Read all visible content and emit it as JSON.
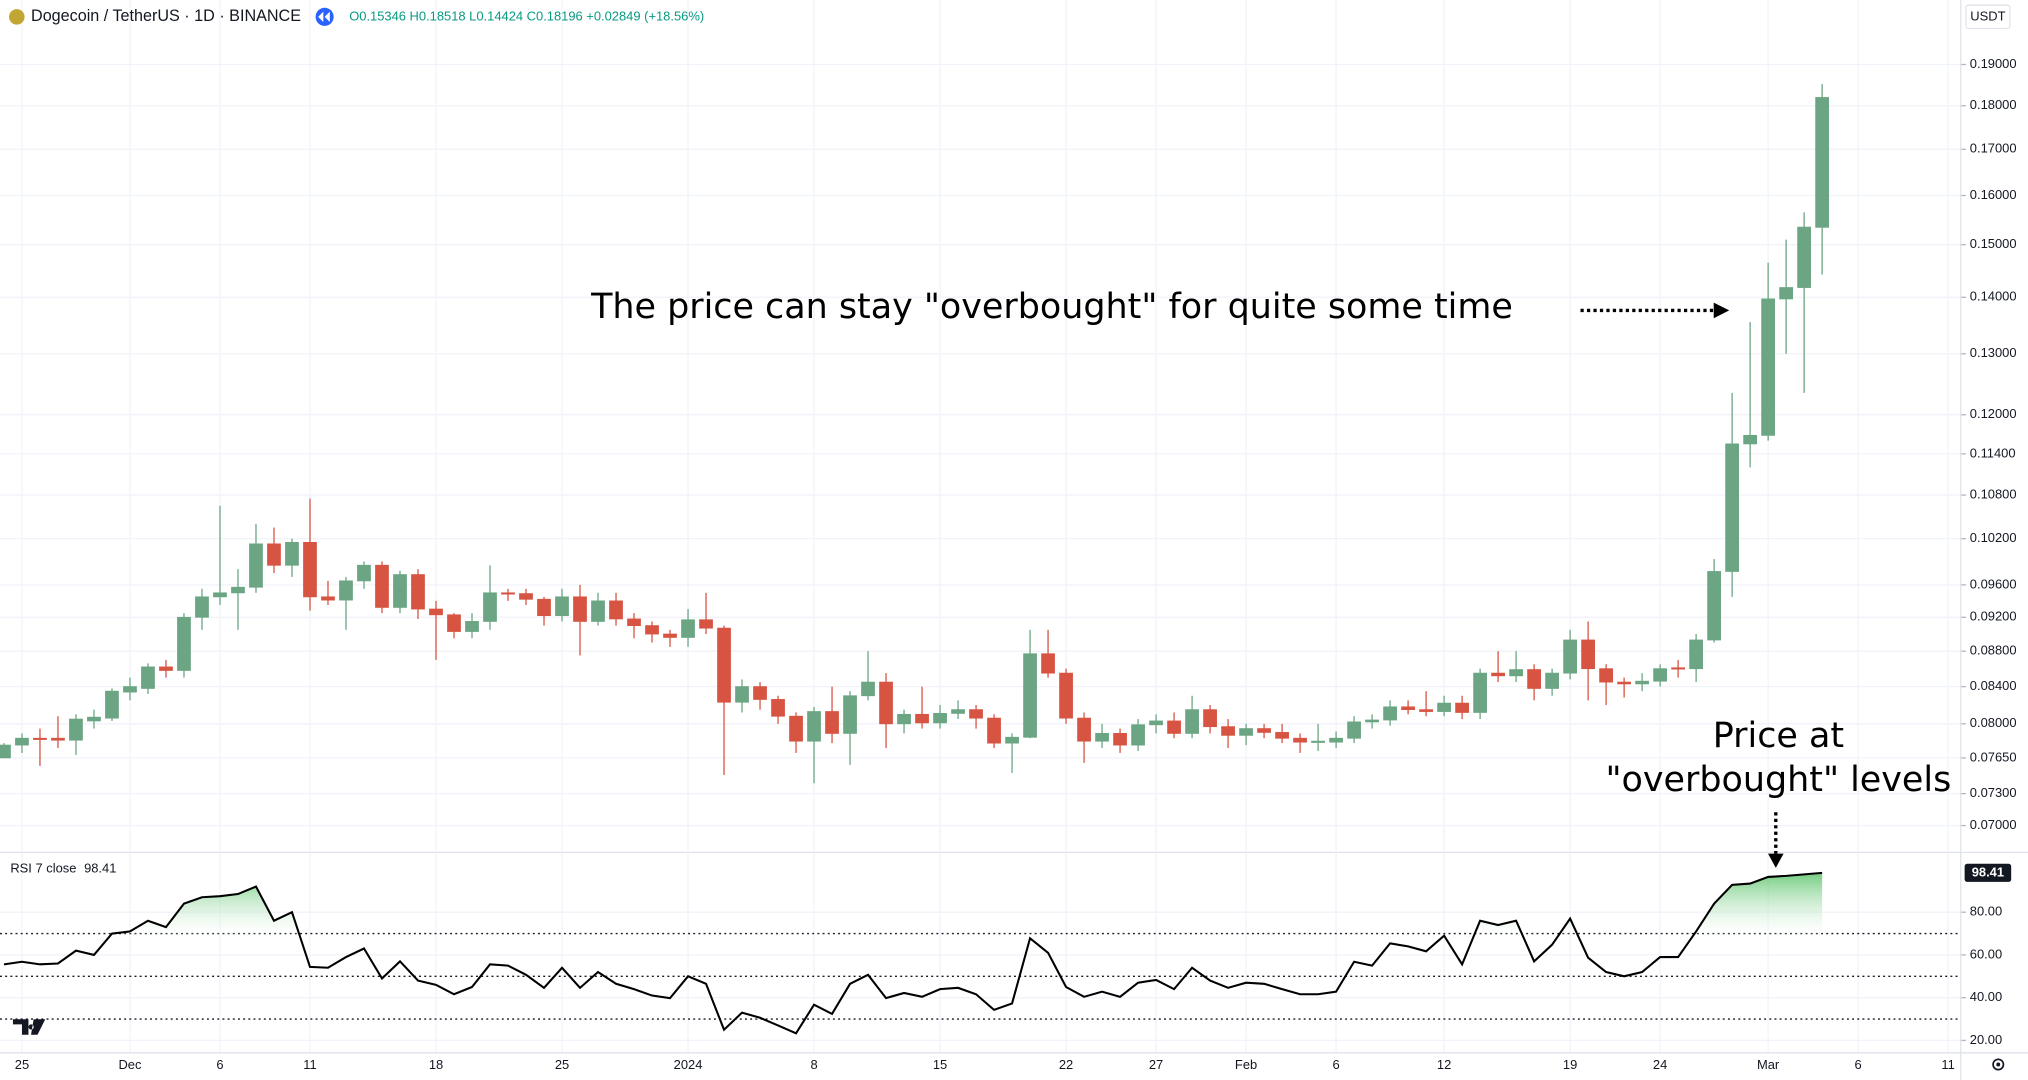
{
  "header": {
    "symbol": "Dogecoin / TetherUS · 1D · BINANCE",
    "ohlc": "O0.15346 H0.18518 L0.14424 C0.18196 +0.02849 (+18.56%)"
  },
  "annotations": [
    "The price can stay \"overbought\" for quite some time",
    "Price at",
    "\"overbought\" levels"
  ],
  "chart_data": [
    {
      "type": "candlestick",
      "axis_unit": "USDT",
      "log": true,
      "grid": true,
      "up_color": "#6ba583",
      "down_color": "#d75442",
      "xlim": [
        -0.22,
        108.7
      ],
      "xticks": [
        {
          "value": 1,
          "label": "25"
        },
        {
          "value": 7,
          "label": "Dec"
        },
        {
          "value": 12,
          "label": "6"
        },
        {
          "value": 17,
          "label": "11"
        },
        {
          "value": 24,
          "label": "18"
        },
        {
          "value": 31,
          "label": "25"
        },
        {
          "value": 38,
          "label": "2024"
        },
        {
          "value": 45,
          "label": "8"
        },
        {
          "value": 52,
          "label": "15"
        },
        {
          "value": 59,
          "label": "22"
        },
        {
          "value": 64,
          "label": "27"
        },
        {
          "value": 69,
          "label": "Feb"
        },
        {
          "value": 74,
          "label": "6"
        },
        {
          "value": 80,
          "label": "12"
        },
        {
          "value": 87,
          "label": "19"
        },
        {
          "value": 92,
          "label": "24"
        },
        {
          "value": 98,
          "label": "Mar"
        },
        {
          "value": 103,
          "label": "6"
        },
        {
          "value": 108,
          "label": "11"
        }
      ],
      "ylim": [
        0.0677,
        0.1992
      ],
      "yticks": [
        {
          "value": 0.07,
          "label": "0.07000"
        },
        {
          "value": 0.073,
          "label": "0.07300"
        },
        {
          "value": 0.0765,
          "label": "0.07650"
        },
        {
          "value": 0.08,
          "label": "0.08000"
        },
        {
          "value": 0.084,
          "label": "0.08400"
        },
        {
          "value": 0.088,
          "label": "0.08800"
        },
        {
          "value": 0.092,
          "label": "0.09200"
        },
        {
          "value": 0.096,
          "label": "0.09600"
        },
        {
          "value": 0.102,
          "label": "0.10200"
        },
        {
          "value": 0.108,
          "label": "0.10800"
        },
        {
          "value": 0.114,
          "label": "0.11400"
        },
        {
          "value": 0.12,
          "label": "0.12000"
        },
        {
          "value": 0.13,
          "label": "0.13000"
        },
        {
          "value": 0.14,
          "label": "0.14000"
        },
        {
          "value": 0.15,
          "label": "0.15000"
        },
        {
          "value": 0.16,
          "label": "0.16000"
        },
        {
          "value": 0.17,
          "label": "0.17000"
        },
        {
          "value": 0.18,
          "label": "0.18000"
        },
        {
          "value": 0.19,
          "label": "0.19000"
        }
      ],
      "open": [
        0.0765,
        0.0778,
        0.0785,
        0.0785,
        0.0783,
        0.0803,
        0.0806,
        0.0834,
        0.0838,
        0.0862,
        0.0858,
        0.092,
        0.0945,
        0.095,
        0.0957,
        0.1013,
        0.0985,
        0.1015,
        0.0945,
        0.0941,
        0.0965,
        0.0985,
        0.0932,
        0.0973,
        0.093,
        0.0923,
        0.0903,
        0.0915,
        0.095,
        0.0949,
        0.0942,
        0.0922,
        0.0945,
        0.0915,
        0.094,
        0.0918,
        0.091,
        0.09,
        0.0896,
        0.0917,
        0.0907,
        0.0823,
        0.084,
        0.0826,
        0.0808,
        0.0782,
        0.0813,
        0.079,
        0.083,
        0.0845,
        0.08,
        0.081,
        0.0801,
        0.0811,
        0.0815,
        0.0806,
        0.078,
        0.0786,
        0.0877,
        0.0855,
        0.0806,
        0.0782,
        0.079,
        0.0778,
        0.0799,
        0.0803,
        0.079,
        0.0815,
        0.0797,
        0.0788,
        0.0795,
        0.0791,
        0.0785,
        0.0782,
        0.0781,
        0.0785,
        0.0802,
        0.0804,
        0.0818,
        0.0815,
        0.0813,
        0.0822,
        0.0812,
        0.0855,
        0.0852,
        0.0859,
        0.0838,
        0.0855,
        0.0893,
        0.086,
        0.0845,
        0.0843,
        0.0846,
        0.0861,
        0.086,
        0.0893,
        0.0977,
        0.1155,
        0.1168,
        0.1397,
        0.1418,
        0.15346
      ],
      "high": [
        0.078,
        0.079,
        0.0795,
        0.0808,
        0.081,
        0.0815,
        0.0838,
        0.085,
        0.0866,
        0.087,
        0.0925,
        0.0955,
        0.1065,
        0.098,
        0.104,
        0.1035,
        0.102,
        0.1075,
        0.0965,
        0.097,
        0.099,
        0.099,
        0.0978,
        0.098,
        0.094,
        0.0925,
        0.0925,
        0.0985,
        0.0955,
        0.0955,
        0.0945,
        0.0955,
        0.096,
        0.095,
        0.095,
        0.0925,
        0.0915,
        0.0905,
        0.093,
        0.095,
        0.091,
        0.0848,
        0.0845,
        0.083,
        0.0812,
        0.0818,
        0.084,
        0.0835,
        0.088,
        0.0855,
        0.0815,
        0.084,
        0.082,
        0.0825,
        0.082,
        0.081,
        0.079,
        0.0905,
        0.0905,
        0.086,
        0.0812,
        0.08,
        0.0795,
        0.0805,
        0.081,
        0.0812,
        0.083,
        0.082,
        0.0805,
        0.08,
        0.08,
        0.08,
        0.079,
        0.08,
        0.0792,
        0.0808,
        0.081,
        0.0825,
        0.0825,
        0.0835,
        0.083,
        0.083,
        0.086,
        0.088,
        0.088,
        0.0865,
        0.086,
        0.0905,
        0.0915,
        0.0865,
        0.085,
        0.0855,
        0.0865,
        0.087,
        0.09,
        0.0993,
        0.1235,
        0.1355,
        0.1465,
        0.151,
        0.1565,
        0.18518
      ],
      "low": [
        0.0765,
        0.077,
        0.0757,
        0.0775,
        0.0768,
        0.0795,
        0.0803,
        0.0825,
        0.0832,
        0.085,
        0.085,
        0.0905,
        0.0935,
        0.0905,
        0.095,
        0.0975,
        0.097,
        0.0928,
        0.0935,
        0.0905,
        0.0955,
        0.0925,
        0.0925,
        0.0918,
        0.087,
        0.0895,
        0.0895,
        0.0905,
        0.094,
        0.0935,
        0.091,
        0.0915,
        0.0875,
        0.091,
        0.091,
        0.0895,
        0.089,
        0.0885,
        0.0885,
        0.09,
        0.0748,
        0.0812,
        0.0815,
        0.08,
        0.077,
        0.074,
        0.078,
        0.0758,
        0.0825,
        0.0775,
        0.079,
        0.0795,
        0.0795,
        0.0805,
        0.0795,
        0.0775,
        0.075,
        0.0785,
        0.085,
        0.08,
        0.076,
        0.0775,
        0.077,
        0.0772,
        0.079,
        0.0785,
        0.0785,
        0.079,
        0.0775,
        0.0778,
        0.0785,
        0.078,
        0.077,
        0.0772,
        0.0775,
        0.078,
        0.0795,
        0.0798,
        0.081,
        0.0808,
        0.0808,
        0.0805,
        0.0805,
        0.0845,
        0.0845,
        0.0825,
        0.083,
        0.0848,
        0.0825,
        0.082,
        0.0828,
        0.0835,
        0.084,
        0.085,
        0.0845,
        0.089,
        0.0945,
        0.112,
        0.116,
        0.13,
        0.1235,
        0.14424
      ],
      "close": [
        0.0778,
        0.0785,
        0.0784,
        0.0783,
        0.0805,
        0.0807,
        0.0835,
        0.084,
        0.0862,
        0.0858,
        0.092,
        0.0945,
        0.095,
        0.0957,
        0.1013,
        0.0985,
        0.1015,
        0.0945,
        0.0941,
        0.0965,
        0.0985,
        0.0932,
        0.0973,
        0.093,
        0.0923,
        0.0903,
        0.0915,
        0.095,
        0.0949,
        0.0942,
        0.0922,
        0.0945,
        0.0915,
        0.094,
        0.0918,
        0.091,
        0.09,
        0.0896,
        0.0917,
        0.0907,
        0.0823,
        0.084,
        0.0826,
        0.0808,
        0.0782,
        0.0813,
        0.079,
        0.083,
        0.0845,
        0.08,
        0.081,
        0.0801,
        0.0811,
        0.0815,
        0.0806,
        0.078,
        0.0786,
        0.0877,
        0.0855,
        0.0806,
        0.0782,
        0.079,
        0.0778,
        0.0799,
        0.0803,
        0.079,
        0.0815,
        0.0797,
        0.0788,
        0.0795,
        0.0791,
        0.0785,
        0.0781,
        0.0782,
        0.0785,
        0.0802,
        0.0804,
        0.0818,
        0.0815,
        0.0813,
        0.0822,
        0.0812,
        0.0855,
        0.0852,
        0.0859,
        0.0838,
        0.0855,
        0.0893,
        0.086,
        0.0845,
        0.0843,
        0.0846,
        0.086,
        0.086,
        0.0893,
        0.0977,
        0.1155,
        0.1168,
        0.1397,
        0.1418,
        0.1535,
        0.18196
      ]
    },
    {
      "type": "line",
      "title": "RSI 7 close",
      "color": "#000000",
      "fill_color": "#3fb950",
      "fill_above": 70,
      "ylim": [
        14.8,
        107.4
      ],
      "yticks": [
        {
          "value": 80,
          "label": "80.00"
        },
        {
          "value": 60,
          "label": "60.00"
        },
        {
          "value": 40,
          "label": "40.00"
        },
        {
          "value": 20,
          "label": "20.00"
        }
      ],
      "bands": [
        70,
        50,
        30
      ],
      "values": [
        55.6,
        56.8,
        55.6,
        56,
        62,
        60,
        70,
        71,
        76,
        73,
        84,
        87,
        87.5,
        88.5,
        92,
        76,
        80,
        54.4,
        54,
        59,
        63,
        49,
        57,
        48,
        46,
        41.6,
        45,
        55.6,
        55,
        50.7,
        44.6,
        54,
        44.6,
        52,
        46.5,
        44,
        41,
        39.8,
        50,
        46.5,
        25,
        33,
        30.6,
        27,
        23.3,
        36.7,
        32.4,
        46.5,
        50.7,
        39.8,
        42.2,
        40.4,
        44,
        44.6,
        41.6,
        34.3,
        37.3,
        67.8,
        61,
        45,
        40.4,
        42.8,
        40.4,
        47,
        48.3,
        44,
        54,
        48,
        44.6,
        47,
        46.5,
        44,
        41.6,
        41.6,
        42.8,
        56.8,
        55,
        65.4,
        64,
        61.7,
        69,
        55.6,
        76,
        74,
        76,
        57,
        64.8,
        77,
        58.7,
        52,
        50,
        52,
        59,
        59,
        71,
        84,
        92.8,
        93.4,
        96.5,
        97,
        97.7,
        98.41
      ]
    }
  ]
}
